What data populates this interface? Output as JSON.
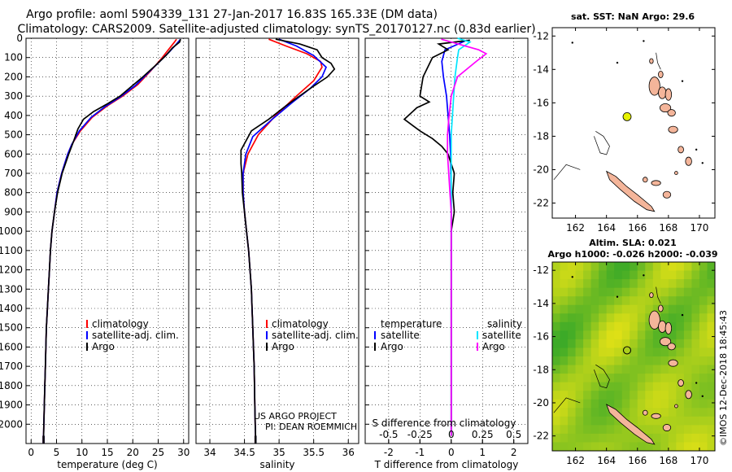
{
  "titles": {
    "line1": "Argo profile: aoml 5904339_131 27-Jan-2017 16.83S 165.33E (DM data)",
    "line2": "Climatology: CARS2009. Satellite-adjusted climatology: synTS_20170127.nc (0.83d earlier)"
  },
  "credit": {
    "line1": "US ARGO PROJECT",
    "line2": "PI: DEAN ROEMMICH"
  },
  "watermark": "©IMOS 12-Dec-2018 18:45:43",
  "colors": {
    "climatology": "#ff0000",
    "satellite": "#0000ff",
    "argo": "#000000",
    "sal_satellite": "#00e5ff",
    "sal_argo": "#ff00ff",
    "land": "#f4b59a",
    "float_marker": "#e6f200",
    "sla_field": "#66cc33"
  },
  "chart_data": [
    {
      "type": "line",
      "id": "temperature",
      "xlabel": "temperature (deg C)",
      "ylabel": "",
      "xlim": [
        -1,
        31
      ],
      "ylim": [
        2100,
        0
      ],
      "xticks": [
        0,
        5,
        10,
        15,
        20,
        25,
        30
      ],
      "yticks": [
        0,
        100,
        200,
        300,
        400,
        500,
        600,
        700,
        800,
        900,
        1000,
        1100,
        1200,
        1300,
        1400,
        1500,
        1600,
        1700,
        1800,
        1900,
        2000
      ],
      "legend": [
        "climatology",
        "satellite-adj. clim.",
        "Argo"
      ],
      "series": [
        {
          "name": "climatology",
          "color": "#ff0000",
          "points": [
            [
              28.6,
              5
            ],
            [
              28.2,
              20
            ],
            [
              27,
              60
            ],
            [
              25.5,
              110
            ],
            [
              23.5,
              170
            ],
            [
              21,
              240
            ],
            [
              18,
              300
            ],
            [
              15,
              350
            ],
            [
              12,
              410
            ],
            [
              9.7,
              480
            ],
            [
              8,
              550
            ],
            [
              7.2,
              600
            ],
            [
              6,
              700
            ],
            [
              5.1,
              800
            ],
            [
              4.6,
              900
            ],
            [
              4.1,
              1000
            ],
            [
              3.8,
              1100
            ],
            [
              3.6,
              1200
            ],
            [
              3.4,
              1300
            ],
            [
              3.2,
              1400
            ],
            [
              3.0,
              1500
            ],
            [
              2.9,
              1600
            ],
            [
              2.8,
              1700
            ],
            [
              2.7,
              1800
            ],
            [
              2.6,
              1900
            ],
            [
              2.5,
              2000
            ],
            [
              2.45,
              2060
            ]
          ]
        },
        {
          "name": "satellite-adj. clim.",
          "color": "#0000ff",
          "points": [
            [
              29.4,
              5
            ],
            [
              28.6,
              30
            ],
            [
              27.2,
              70
            ],
            [
              25.3,
              120
            ],
            [
              23,
              180
            ],
            [
              20.5,
              245
            ],
            [
              17.5,
              305
            ],
            [
              14.5,
              355
            ],
            [
              11.8,
              410
            ],
            [
              9.5,
              480
            ],
            [
              8,
              550
            ],
            [
              7.2,
              600
            ],
            [
              6,
              700
            ],
            [
              5.1,
              800
            ],
            [
              4.6,
              900
            ],
            [
              4.1,
              1000
            ],
            [
              3.8,
              1100
            ],
            [
              3.6,
              1200
            ],
            [
              3.4,
              1300
            ],
            [
              3.2,
              1400
            ],
            [
              3.0,
              1500
            ],
            [
              2.9,
              1600
            ],
            [
              2.8,
              1700
            ],
            [
              2.7,
              1800
            ],
            [
              2.6,
              1900
            ],
            [
              2.5,
              2000
            ],
            [
              2.45,
              2060
            ]
          ]
        },
        {
          "name": "Argo",
          "color": "#000000",
          "points": [
            [
              29.4,
              5
            ],
            [
              29.2,
              20
            ],
            [
              27.8,
              50
            ],
            [
              26.5,
              90
            ],
            [
              24.5,
              140
            ],
            [
              22,
              200
            ],
            [
              19.5,
              255
            ],
            [
              17.5,
              300
            ],
            [
              15,
              340
            ],
            [
              12.3,
              380
            ],
            [
              10.3,
              420
            ],
            [
              9.2,
              470
            ],
            [
              8.4,
              530
            ],
            [
              7.4,
              600
            ],
            [
              6.1,
              700
            ],
            [
              5.2,
              800
            ],
            [
              4.6,
              900
            ],
            [
              4.1,
              1000
            ],
            [
              3.8,
              1100
            ],
            [
              3.6,
              1200
            ],
            [
              3.4,
              1300
            ],
            [
              3.2,
              1400
            ],
            [
              3.0,
              1500
            ],
            [
              2.9,
              1600
            ],
            [
              2.8,
              1700
            ],
            [
              2.7,
              1800
            ],
            [
              2.6,
              1900
            ],
            [
              2.5,
              2000
            ],
            [
              2.45,
              2060
            ]
          ]
        }
      ]
    },
    {
      "type": "line",
      "id": "salinity",
      "xlabel": "salinity",
      "ylabel": "",
      "xlim": [
        33.8,
        36.15
      ],
      "ylim": [
        2100,
        0
      ],
      "xticks": [
        34,
        34.5,
        35,
        35.5,
        36
      ],
      "xticklabels": [
        "34",
        "34.5",
        "35",
        "35.5",
        "36"
      ],
      "legend": [
        "climatology",
        "satellite-adj. clim.",
        "Argo"
      ],
      "series": [
        {
          "name": "climatology",
          "color": "#ff0000",
          "points": [
            [
              34.85,
              5
            ],
            [
              35.1,
              40
            ],
            [
              35.4,
              80
            ],
            [
              35.6,
              120
            ],
            [
              35.62,
              150
            ],
            [
              35.5,
              220
            ],
            [
              35.25,
              300
            ],
            [
              34.95,
              400
            ],
            [
              34.7,
              500
            ],
            [
              34.55,
              600
            ],
            [
              34.48,
              700
            ],
            [
              34.48,
              800
            ],
            [
              34.5,
              900
            ],
            [
              34.53,
              1000
            ],
            [
              34.56,
              1100
            ],
            [
              34.58,
              1200
            ],
            [
              34.6,
              1300
            ],
            [
              34.61,
              1400
            ],
            [
              34.62,
              1500
            ],
            [
              34.63,
              1600
            ],
            [
              34.64,
              1700
            ],
            [
              34.645,
              1800
            ],
            [
              34.65,
              1900
            ],
            [
              34.655,
              2000
            ],
            [
              34.66,
              2060
            ]
          ]
        },
        {
          "name": "satellite-adj. clim.",
          "color": "#0000ff",
          "points": [
            [
              35.0,
              5
            ],
            [
              35.25,
              40
            ],
            [
              35.5,
              90
            ],
            [
              35.68,
              150
            ],
            [
              35.62,
              200
            ],
            [
              35.45,
              260
            ],
            [
              35.2,
              330
            ],
            [
              34.9,
              420
            ],
            [
              34.62,
              510
            ],
            [
              34.52,
              600
            ],
            [
              34.48,
              700
            ],
            [
              34.48,
              800
            ],
            [
              34.5,
              900
            ],
            [
              34.53,
              1000
            ],
            [
              34.56,
              1100
            ],
            [
              34.58,
              1200
            ],
            [
              34.6,
              1300
            ],
            [
              34.61,
              1400
            ],
            [
              34.62,
              1500
            ],
            [
              34.63,
              1600
            ],
            [
              34.64,
              1700
            ],
            [
              34.645,
              1800
            ],
            [
              34.65,
              1900
            ],
            [
              34.655,
              2000
            ],
            [
              34.66,
              2060
            ]
          ]
        },
        {
          "name": "Argo",
          "color": "#000000",
          "points": [
            [
              34.95,
              5
            ],
            [
              35.3,
              30
            ],
            [
              35.55,
              60
            ],
            [
              35.62,
              100
            ],
            [
              35.75,
              130
            ],
            [
              35.8,
              160
            ],
            [
              35.7,
              200
            ],
            [
              35.45,
              260
            ],
            [
              35.1,
              350
            ],
            [
              34.85,
              420
            ],
            [
              34.6,
              480
            ],
            [
              34.45,
              580
            ],
            [
              34.45,
              650
            ],
            [
              34.46,
              700
            ],
            [
              34.47,
              800
            ],
            [
              34.5,
              900
            ],
            [
              34.53,
              1000
            ],
            [
              34.56,
              1100
            ],
            [
              34.58,
              1200
            ],
            [
              34.6,
              1300
            ],
            [
              34.61,
              1400
            ],
            [
              34.62,
              1500
            ],
            [
              34.63,
              1600
            ],
            [
              34.64,
              1700
            ],
            [
              34.645,
              1800
            ],
            [
              34.65,
              1900
            ],
            [
              34.655,
              2000
            ],
            [
              34.66,
              2060
            ]
          ]
        }
      ]
    },
    {
      "type": "line",
      "id": "difference",
      "xlabel": "T difference from climatology",
      "xlabel_top": "S difference from climatology",
      "xlim": [
        -2.75,
        2.45
      ],
      "ylim": [
        2100,
        0
      ],
      "xticks": [
        -2,
        -1,
        0,
        1,
        2
      ],
      "xticklabels": [
        "-2",
        "-1",
        "0",
        "1",
        "2"
      ],
      "s_xticks": [
        -0.5,
        -0.25,
        0,
        0.25,
        0.5
      ],
      "s_xticklabels": [
        "-0.5",
        "-0.25",
        "0",
        "0.25",
        "0.5"
      ],
      "s_scale": 4,
      "legend_left_title": "temperature",
      "legend_right_title": "salinity",
      "legend_left": [
        "satellite",
        "Argo"
      ],
      "legend_right": [
        "satellite",
        "Argo"
      ],
      "series": [
        {
          "name": "T satellite",
          "color": "#0000ff",
          "points": [
            [
              0.5,
              10
            ],
            [
              -0.2,
              60
            ],
            [
              -0.3,
              120
            ],
            [
              -0.25,
              200
            ],
            [
              -0.15,
              300
            ],
            [
              -0.1,
              400
            ],
            [
              -0.05,
              500
            ],
            [
              -0.02,
              600
            ],
            [
              0,
              800
            ],
            [
              0,
              2060
            ]
          ]
        },
        {
          "name": "T Argo",
          "color": "#000000",
          "points": [
            [
              0.6,
              10
            ],
            [
              -0.4,
              30
            ],
            [
              -0.1,
              60
            ],
            [
              -0.6,
              100
            ],
            [
              -0.9,
              200
            ],
            [
              -1.0,
              300
            ],
            [
              -0.7,
              330
            ],
            [
              -1.1,
              360
            ],
            [
              -1.5,
              420
            ],
            [
              -1.0,
              480
            ],
            [
              -0.6,
              520
            ],
            [
              -0.3,
              560
            ],
            [
              -0.1,
              600
            ],
            [
              0.1,
              700
            ],
            [
              0.05,
              800
            ],
            [
              0.1,
              900
            ],
            [
              0,
              1000
            ],
            [
              0,
              2060
            ]
          ]
        },
        {
          "name": "S satellite",
          "color": "#00e5ff",
          "scale": "S",
          "points": [
            [
              0.05,
              0
            ],
            [
              0.15,
              20
            ],
            [
              0.06,
              60
            ],
            [
              0.05,
              100
            ],
            [
              0.03,
              200
            ],
            [
              0.02,
              300
            ],
            [
              0,
              500
            ],
            [
              0,
              700
            ],
            [
              0,
              1000
            ],
            [
              0,
              2060
            ]
          ]
        },
        {
          "name": "S Argo",
          "color": "#ff00ff",
          "scale": "S",
          "points": [
            [
              -0.08,
              5
            ],
            [
              0.22,
              60
            ],
            [
              0.28,
              80
            ],
            [
              0.2,
              120
            ],
            [
              0.05,
              200
            ],
            [
              0,
              300
            ],
            [
              -0.02,
              420
            ],
            [
              -0.03,
              500
            ],
            [
              -0.03,
              600
            ],
            [
              -0.02,
              700
            ],
            [
              -0.01,
              800
            ],
            [
              0,
              900
            ],
            [
              0,
              1000
            ],
            [
              0,
              2060
            ]
          ]
        }
      ]
    },
    {
      "type": "map",
      "id": "sst-map",
      "title": "sat. SST: NaN Argo: 29.6",
      "xticks": [
        162,
        164,
        166,
        168,
        170
      ],
      "yticks": [
        -12,
        -14,
        -16,
        -18,
        -20,
        -22
      ],
      "xlim": [
        160.5,
        171
      ],
      "ylim": [
        -22.9,
        -11.5
      ],
      "float": {
        "lon": 165.33,
        "lat": -16.83
      }
    },
    {
      "type": "map",
      "id": "sla-map",
      "title": "Altim. SLA: 0.021",
      "subtitle": "Argo h1000: -0.026 h2000: -0.039",
      "xticks": [
        162,
        164,
        166,
        168,
        170
      ],
      "yticks": [
        -12,
        -14,
        -16,
        -18,
        -20,
        -22
      ],
      "xlim": [
        160.5,
        171
      ],
      "ylim": [
        -22.9,
        -11.5
      ],
      "float": {
        "lon": 165.33,
        "lat": -16.83
      }
    }
  ]
}
